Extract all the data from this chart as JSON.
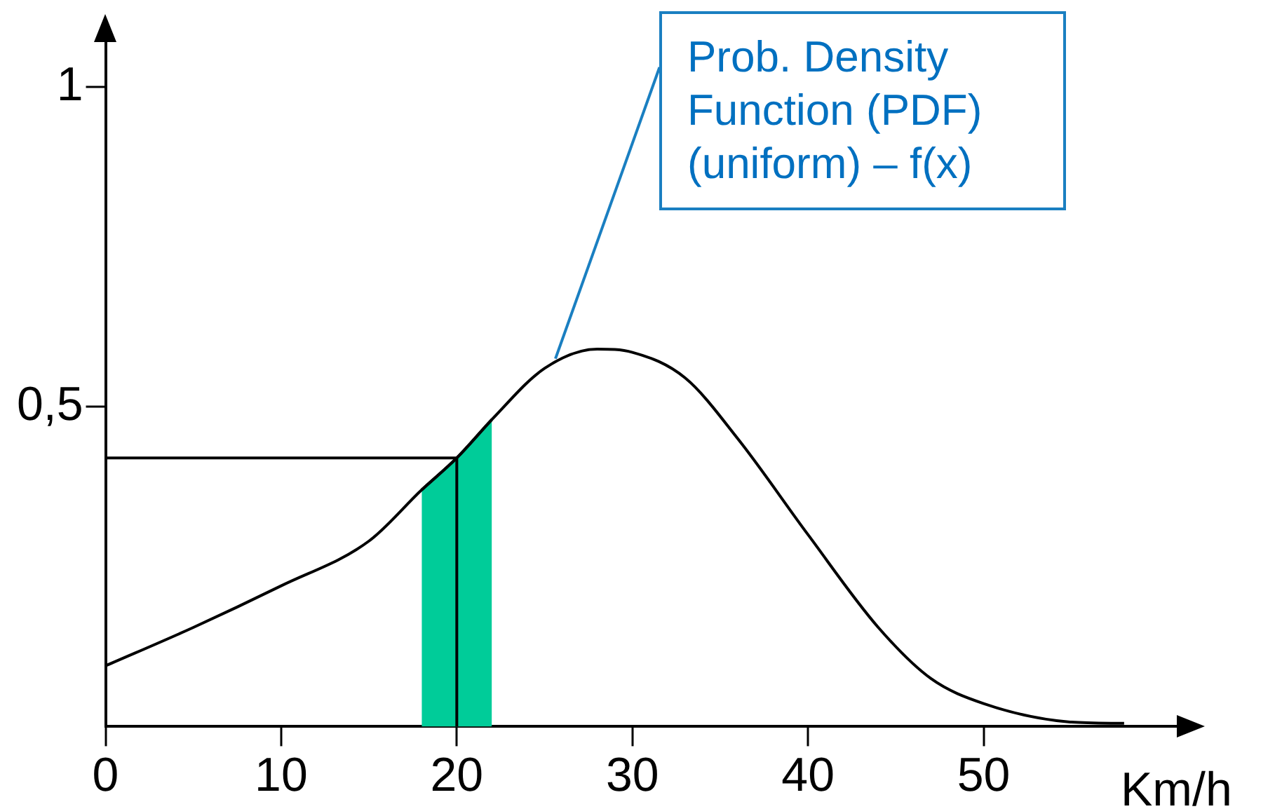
{
  "chart_data": {
    "type": "line",
    "xlabel": "Km/h",
    "xlim": [
      0,
      61
    ],
    "ylim": [
      0,
      1.07
    ],
    "xticks": [
      0,
      10,
      20,
      30,
      40,
      50
    ],
    "yticks": [
      {
        "value": 0.5,
        "label": "0,5"
      },
      1
    ],
    "grid": false,
    "legend": false,
    "marker": "none",
    "line_style": "solid",
    "series": [
      {
        "type": "area",
        "color": "#00cc99",
        "x": [
          18,
          20,
          22
        ],
        "values": [
          0.37,
          0.42,
          0.48
        ]
      },
      {
        "type": "line",
        "color": "#000000",
        "x": [
          0,
          5,
          10,
          15,
          18,
          20,
          22,
          25,
          28,
          30,
          33,
          36,
          40,
          44,
          47,
          50,
          55,
          58
        ],
        "values": [
          0.095,
          0.155,
          0.22,
          0.29,
          0.37,
          0.42,
          0.48,
          0.56,
          0.59,
          0.585,
          0.545,
          0.45,
          0.3,
          0.155,
          0.075,
          0.036,
          0.007,
          0.005
        ]
      },
      {
        "type": "line",
        "color": "#000000",
        "x": [
          0,
          20,
          20
        ],
        "values": [
          0.42,
          0.42,
          0
        ]
      }
    ],
    "annotations": [
      {
        "text": "Prob. Density Function (PDF) (uniform) – f(x)",
        "x": 25.6,
        "y": 0.575
      }
    ]
  }
}
